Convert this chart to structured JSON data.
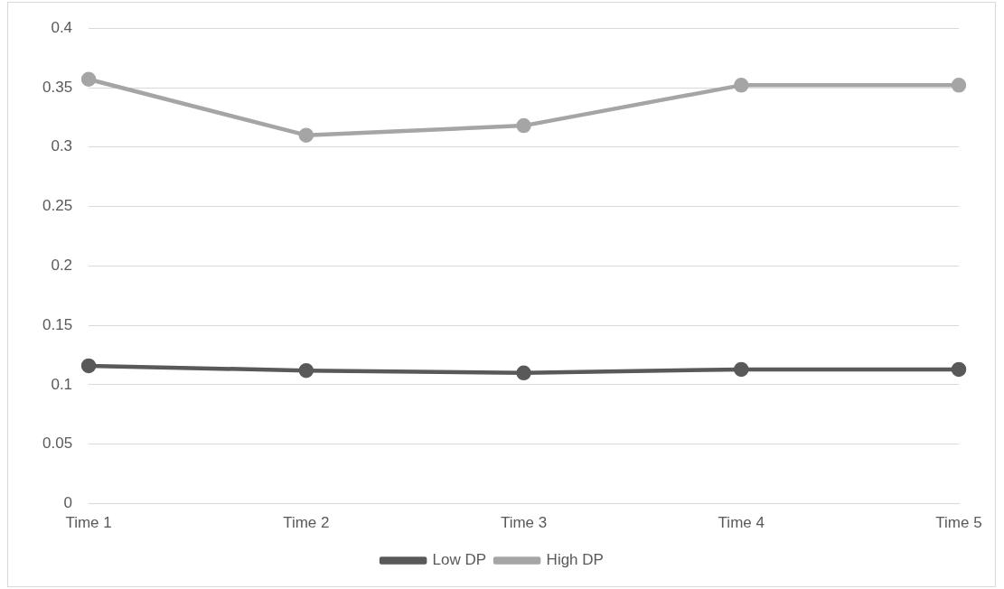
{
  "chart_data": {
    "type": "line",
    "categories": [
      "Time 1",
      "Time 2",
      "Time 3",
      "Time 4",
      "Time 5"
    ],
    "series": [
      {
        "name": "Low DP",
        "color": "#595959",
        "values": [
          0.116,
          0.112,
          0.11,
          0.113,
          0.113
        ]
      },
      {
        "name": "High DP",
        "color": "#a5a5a5",
        "values": [
          0.357,
          0.31,
          0.318,
          0.352,
          0.352
        ]
      }
    ],
    "ylim": [
      0,
      0.4
    ],
    "yticks": [
      0,
      0.05,
      0.1,
      0.15,
      0.2,
      0.25,
      0.3,
      0.35,
      0.4
    ],
    "grid": "y",
    "legend": "bottom",
    "marker": "circle",
    "line_style": "solid"
  }
}
